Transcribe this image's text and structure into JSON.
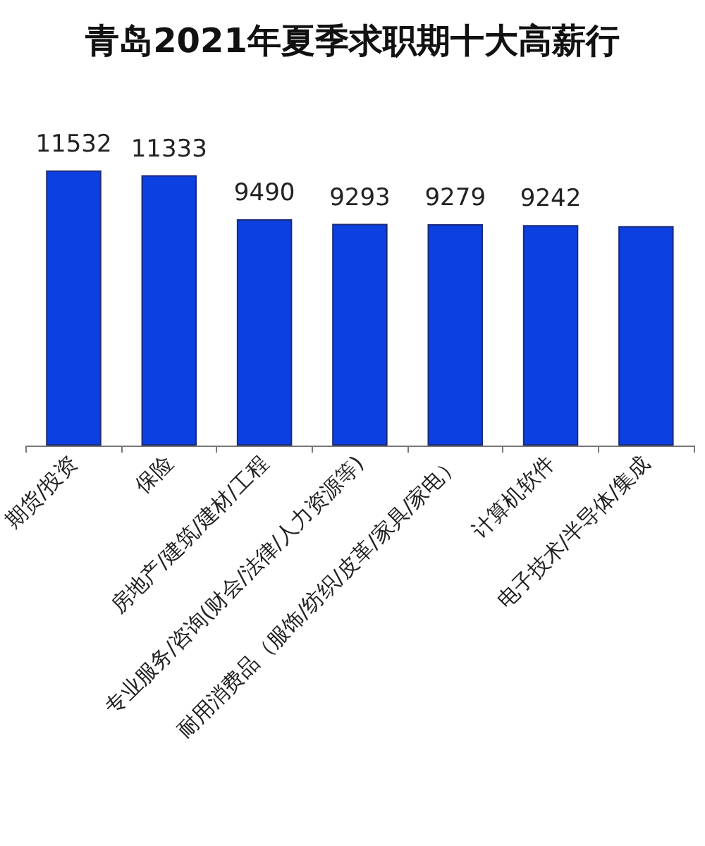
{
  "chart_data": {
    "type": "bar",
    "title": "青岛2021年夏季求职期十大高薪行",
    "categories": [
      "期货/投资",
      "保险",
      "房地产/建筑/建材/工程",
      "专业服务/咨询(财会/法律/人力资源等)",
      "耐用消费品（服饰/纺织/皮革/家具/家电）",
      "计算机软件",
      "电子技术/半导体/集成"
    ],
    "values": [
      11532,
      11333,
      9490,
      9293,
      9279,
      9242,
      9200
    ],
    "value_labels": [
      "11532",
      "11333",
      "9490",
      "9293",
      "9279",
      "9242",
      null
    ],
    "color": "#0c40e0"
  }
}
